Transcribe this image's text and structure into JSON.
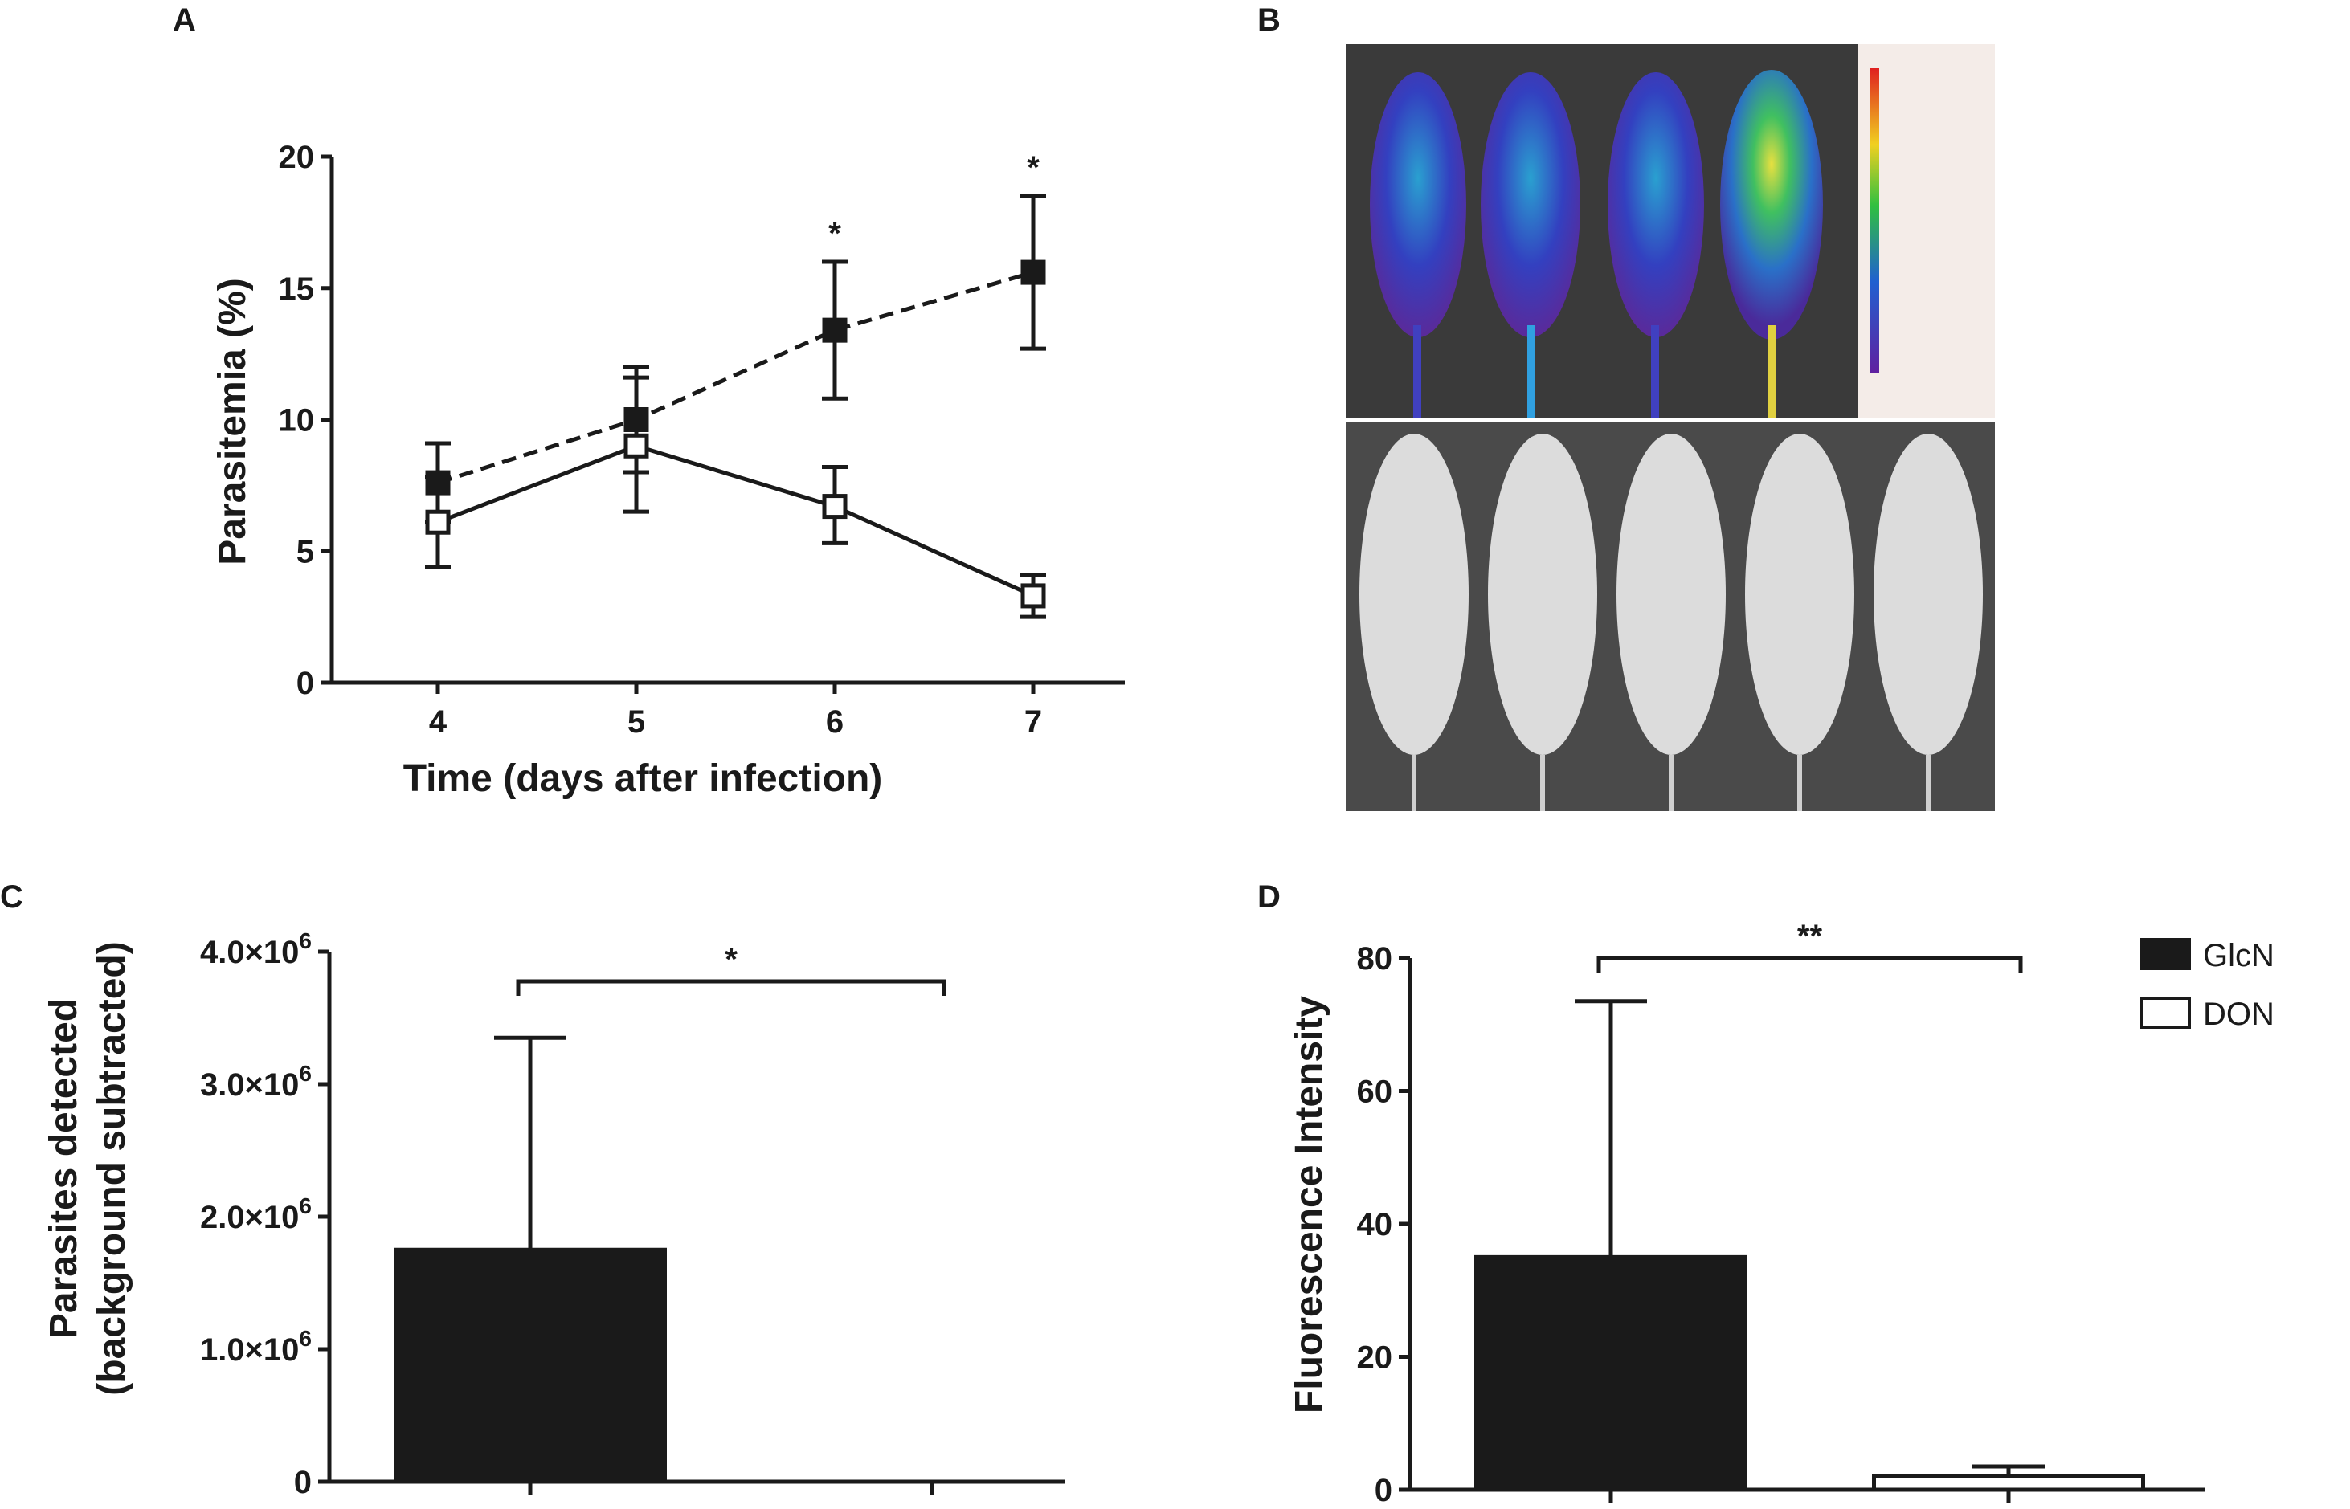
{
  "panels": {
    "a": "A",
    "b": "B",
    "c": "C",
    "d": "D"
  },
  "chart_data": [
    {
      "panel": "A",
      "type": "line",
      "xlabel": "Time (days after infection)",
      "ylabel": "Parasitemia  (%)",
      "x": [
        4,
        5,
        6,
        7
      ],
      "xlim": [
        3.5,
        7.5
      ],
      "ylim": [
        0,
        20
      ],
      "yticks": [
        0,
        5,
        10,
        15,
        20
      ],
      "series": [
        {
          "name": "GlcN",
          "style": "dashed",
          "marker": "filled-square",
          "values": [
            7.6,
            10.0,
            13.4,
            15.6
          ],
          "err_high": [
            9.1,
            12.0,
            16.0,
            18.5
          ],
          "err_low": [
            6.1,
            8.0,
            10.8,
            12.7
          ]
        },
        {
          "name": "DON",
          "style": "solid",
          "marker": "open-square",
          "values": [
            6.1,
            9.0,
            6.7,
            3.3
          ],
          "err_high": [
            7.8,
            11.6,
            8.2,
            4.1
          ],
          "err_low": [
            4.4,
            6.5,
            5.3,
            2.5
          ]
        }
      ],
      "annotations": [
        {
          "x": 6,
          "text": "*"
        },
        {
          "x": 7,
          "text": "*"
        }
      ]
    },
    {
      "panel": "C",
      "type": "bar",
      "ylabel": "Parasites detected",
      "ylabel2": "(background subtracted)",
      "ylim": [
        0,
        4000000
      ],
      "yticks": [
        0,
        1000000,
        2000000,
        3000000,
        4000000
      ],
      "ytick_labels": [
        "0",
        "1.0×10",
        "2.0×10",
        "3.0×10",
        "4.0×10"
      ],
      "ytick_exponent": "6",
      "categories": [
        "GlcN",
        "DON"
      ],
      "values": [
        1750000,
        0
      ],
      "err_high": [
        3350000,
        0
      ],
      "significance": "*"
    },
    {
      "panel": "D",
      "type": "bar",
      "ylabel": "Fluorescence Intensity",
      "ylim": [
        0,
        80
      ],
      "yticks": [
        0,
        20,
        40,
        60,
        80
      ],
      "categories": [
        "GlcN",
        "DON"
      ],
      "values": [
        35,
        2
      ],
      "err_high": [
        73.5,
        3.5
      ],
      "significance": "**"
    }
  ],
  "legend": [
    {
      "label": "GlcN",
      "fill": "#1a1a1a"
    },
    {
      "label": "DON",
      "fill": "#ffffff"
    }
  ],
  "colors": {
    "ink": "#1a1a1a",
    "paper": "#ffffff",
    "photo_bg": "#3a3a3a"
  }
}
